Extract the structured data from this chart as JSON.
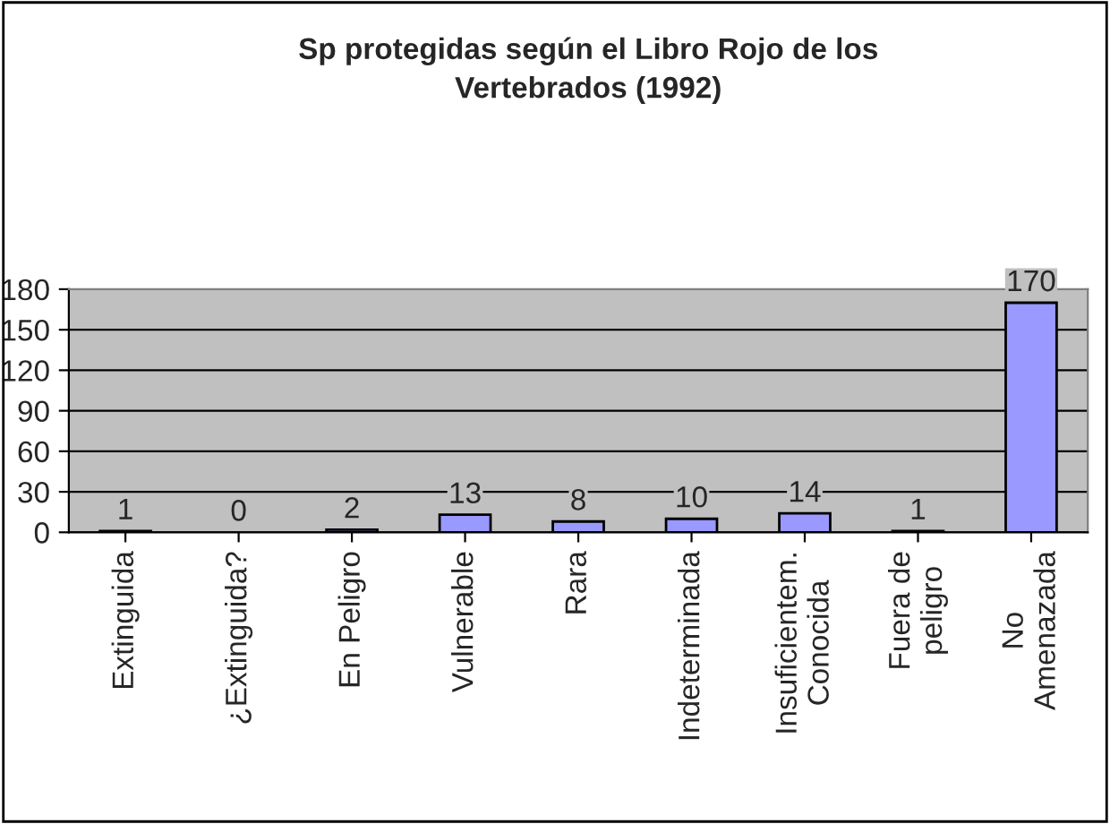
{
  "chart_data": {
    "type": "bar",
    "title": "Sp protegidas según el Libro Rojo de los\nVertebrados (1992)",
    "categories": [
      "Extinguida",
      "¿Extinguida?",
      "En Peligro",
      "Vulnerable",
      "Rara",
      "Indeterminada",
      "Insuficientem.\nConocida",
      "Fuera de\npeligro",
      "No\nAmenazada"
    ],
    "values": [
      1,
      0,
      2,
      13,
      8,
      10,
      14,
      1,
      170
    ],
    "color": "#9999ff",
    "ylim": [
      0,
      180
    ],
    "yticks": [
      0,
      30,
      60,
      90,
      120,
      150,
      180
    ],
    "grid": "y",
    "data_labels": true
  }
}
